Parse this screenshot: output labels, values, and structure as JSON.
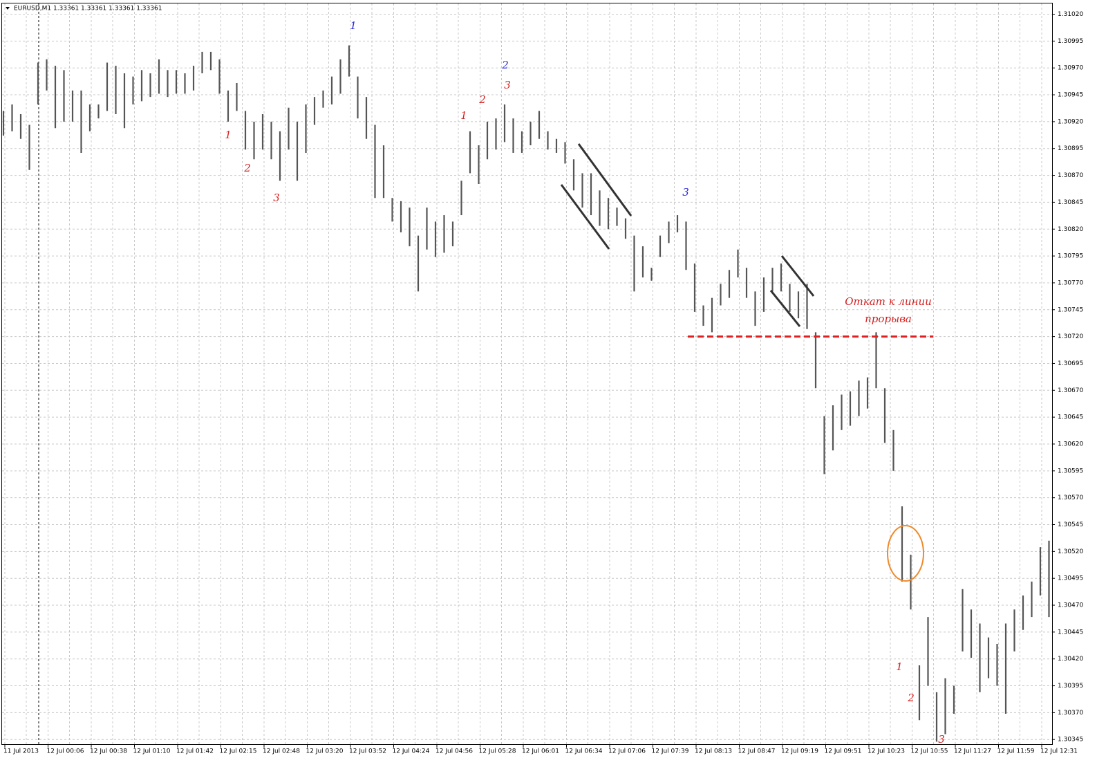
{
  "chart_data": {
    "type": "range",
    "title": "EURUSD,M1  1.33361 1.33361 1.33361 1.33361",
    "categories": [
      "11 Jul 2013",
      null,
      null,
      null,
      null,
      "12 Jul 00:06",
      null,
      null,
      null,
      null,
      "12 Jul 00:38",
      null,
      null,
      null,
      null,
      "12 Jul 01:10",
      null,
      null,
      null,
      null,
      "12 Jul 01:42",
      null,
      null,
      null,
      null,
      "12 Jul 02:15",
      null,
      null,
      null,
      null,
      "12 Jul 02:48",
      null,
      null,
      null,
      null,
      "12 Jul 03:20",
      null,
      null,
      null,
      null,
      "12 Jul 03:52",
      null,
      null,
      null,
      null,
      "12 Jul 04:24",
      null,
      null,
      null,
      null,
      "12 Jul 04:56",
      null,
      null,
      null,
      null,
      "12 Jul 05:28",
      null,
      null,
      null,
      null,
      "12 Jul 06:01",
      null,
      null,
      null,
      null,
      "12 Jul 06:34",
      null,
      null,
      null,
      null,
      "12 Jul 07:06",
      null,
      null,
      null,
      null,
      "12 Jul 07:39",
      null,
      null,
      null,
      null,
      "12 Jul 08:13",
      null,
      null,
      null,
      null,
      "12 Jul 08:47",
      null,
      null,
      null,
      null,
      "12 Jul 09:19",
      null,
      null,
      null,
      null,
      "12 Jul 09:51",
      null,
      null,
      null,
      null,
      "12 Jul 10:23",
      null,
      null,
      null,
      null,
      "12 Jul 10:55",
      null,
      null,
      null,
      null,
      "12 Jul 11:27",
      null,
      null,
      null,
      null,
      "12 Jul 11:59",
      null,
      null,
      null,
      null,
      "12 Jul 12:31",
      null
    ],
    "high": [
      1.3093,
      1.30936,
      1.30927,
      1.30917,
      1.30975,
      1.30978,
      1.30972,
      1.30968,
      1.30949,
      1.30949,
      1.30936,
      1.30936,
      1.30975,
      1.30972,
      1.30965,
      1.30962,
      1.30968,
      1.30965,
      1.30978,
      1.30968,
      1.30968,
      1.30965,
      1.30972,
      1.30985,
      1.30985,
      1.30978,
      1.30949,
      1.30956,
      1.3093,
      1.3092,
      1.30927,
      1.3092,
      1.30911,
      1.30933,
      1.3092,
      1.30936,
      1.30943,
      1.30949,
      1.30962,
      1.30978,
      1.30991,
      1.30962,
      1.30943,
      1.30917,
      1.30898,
      1.30849,
      1.30846,
      1.3084,
      1.30814,
      1.3084,
      1.30827,
      1.30833,
      1.30827,
      1.30865,
      1.30911,
      1.30898,
      1.3092,
      1.30923,
      1.30936,
      1.30923,
      1.30911,
      1.3092,
      1.3093,
      1.30911,
      1.30904,
      1.30901,
      1.30885,
      1.30872,
      1.30872,
      1.30856,
      1.30849,
      1.3084,
      1.3083,
      1.30814,
      1.30804,
      1.30784,
      1.30814,
      1.30827,
      1.30833,
      1.30827,
      1.30788,
      1.30749,
      1.30756,
      1.30769,
      1.30782,
      1.30801,
      1.30784,
      1.30762,
      1.30775,
      1.30784,
      1.30788,
      1.30769,
      1.30762,
      1.30769,
      1.30724,
      1.30646,
      1.30656,
      1.30666,
      1.30669,
      1.30679,
      1.30682,
      1.30724,
      1.30672,
      1.30633,
      1.30562,
      1.30517,
      1.30414,
      1.30459,
      1.30389,
      1.30402,
      1.30395,
      1.30485,
      1.30466,
      1.30453,
      1.3044,
      1.30434,
      1.30453,
      1.30466,
      1.30479,
      1.30492,
      1.30524,
      1.3053
    ],
    "low": [
      1.30907,
      1.30911,
      1.30904,
      1.30875,
      1.30936,
      1.30949,
      1.30914,
      1.3092,
      1.3092,
      1.30891,
      1.30911,
      1.30923,
      1.3093,
      1.30927,
      1.30914,
      1.30936,
      1.30939,
      1.30943,
      1.30946,
      1.30943,
      1.30946,
      1.30946,
      1.30949,
      1.30965,
      1.30968,
      1.30946,
      1.3092,
      1.3093,
      1.30894,
      1.30885,
      1.30894,
      1.30885,
      1.30865,
      1.30894,
      1.30865,
      1.30891,
      1.30917,
      1.30933,
      1.30936,
      1.30946,
      1.30962,
      1.30923,
      1.30904,
      1.30849,
      1.30849,
      1.30827,
      1.30817,
      1.30804,
      1.30762,
      1.30801,
      1.30794,
      1.30798,
      1.30804,
      1.30833,
      1.30872,
      1.30862,
      1.30885,
      1.30894,
      1.30901,
      1.30891,
      1.30891,
      1.30898,
      1.30904,
      1.30894,
      1.30891,
      1.30881,
      1.30856,
      1.3084,
      1.30833,
      1.30823,
      1.3082,
      1.30823,
      1.30811,
      1.30762,
      1.30775,
      1.30772,
      1.30794,
      1.30807,
      1.30817,
      1.30782,
      1.30743,
      1.3073,
      1.30724,
      1.30749,
      1.30756,
      1.30775,
      1.30756,
      1.3073,
      1.30743,
      1.30762,
      1.30762,
      1.30743,
      1.30737,
      1.30727,
      1.30672,
      1.30592,
      1.30614,
      1.30633,
      1.30637,
      1.30646,
      1.30653,
      1.30672,
      1.30621,
      1.30595,
      1.30492,
      1.30466,
      1.30363,
      1.30395,
      1.30343,
      1.3035,
      1.30369,
      1.30427,
      1.30421,
      1.30389,
      1.30402,
      1.30395,
      1.30369,
      1.30427,
      1.30447,
      1.30459,
      1.30479,
      1.30459
    ],
    "color": "#555555",
    "ylim": [
      1.3034,
      1.3103
    ],
    "yticks": [
      {
        "value": 1.3102,
        "label": "1.31020"
      },
      1.30995,
      {
        "value": 1.3097,
        "label": "1.30970"
      },
      1.30945,
      {
        "value": 1.3092,
        "label": "1.30920"
      },
      1.30895,
      {
        "value": 1.3087,
        "label": "1.30870"
      },
      1.30845,
      {
        "value": 1.3082,
        "label": "1.30820"
      },
      1.30795,
      {
        "value": 1.3077,
        "label": "1.30770"
      },
      1.30745,
      {
        "value": 1.3072,
        "label": "1.30720"
      },
      1.30695,
      {
        "value": 1.3067,
        "label": "1.30670"
      },
      1.30645,
      {
        "value": 1.3062,
        "label": "1.30620"
      },
      1.30595,
      {
        "value": 1.3057,
        "label": "1.30570"
      },
      1.30545,
      {
        "value": 1.3052,
        "label": "1.30520"
      },
      1.30495,
      {
        "value": 1.3047,
        "label": "1.30470"
      },
      1.30445,
      {
        "value": 1.3042,
        "label": "1.30420"
      },
      1.30395,
      {
        "value": 1.3037,
        "label": "1.30370"
      },
      1.30345
    ],
    "grid": true,
    "level": 1.3072,
    "level_color": "#e02020",
    "annotations": [
      {
        "text": "1",
        "color": "#2a2ae0"
      },
      {
        "text": "2",
        "color": "#2a2ae0"
      },
      {
        "text": "3",
        "color": "#d42020"
      },
      {
        "text": "1",
        "color": "#d42020"
      },
      {
        "text": "2",
        "color": "#d42020"
      },
      {
        "text": "3",
        "color": "#d42020"
      },
      {
        "text": "1",
        "color": "#d42020"
      },
      {
        "text": "2",
        "color": "#d42020"
      },
      {
        "text": "3",
        "color": "#2a2ae0"
      },
      {
        "text": "1",
        "color": "#d42020"
      },
      {
        "text": "2",
        "color": "#d42020"
      },
      {
        "text": "3",
        "color": "#d42020"
      },
      {
        "text": "Откат к линии",
        "color": "#d42020"
      },
      {
        "text": "прорыва",
        "color": "#d42020"
      }
    ]
  }
}
